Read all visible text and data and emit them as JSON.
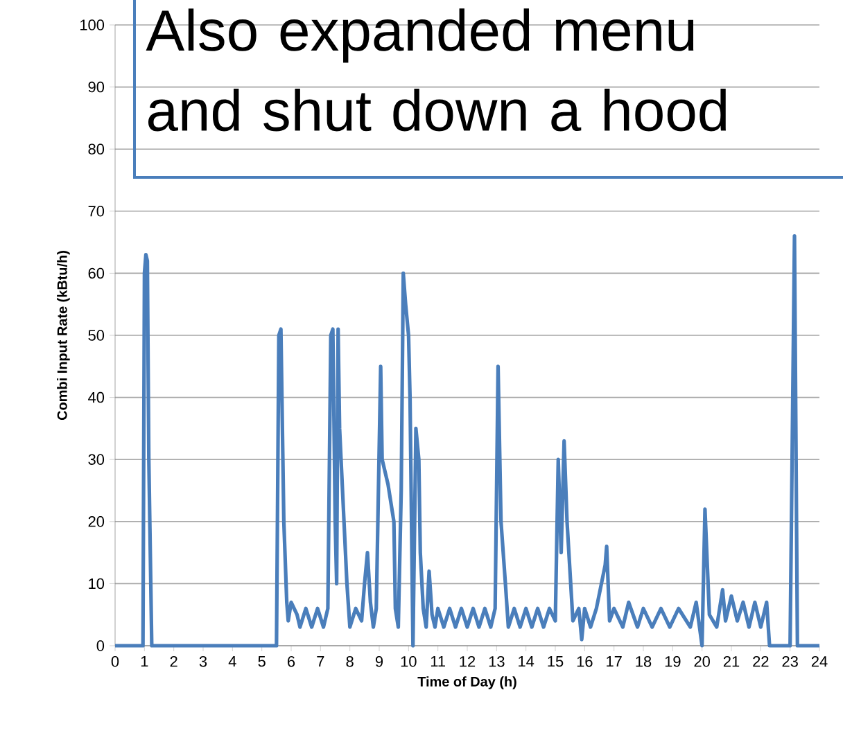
{
  "chart_data": {
    "type": "line",
    "xlabel": "Time of Day (h)",
    "ylabel": "Combi Input Rate (kBtu/h)",
    "annotations": [
      "Also expanded menu and shut down a hood"
    ],
    "xlim": [
      0,
      24
    ],
    "xticks": [
      0,
      1,
      2,
      3,
      4,
      5,
      6,
      7,
      8,
      9,
      10,
      11,
      12,
      13,
      14,
      15,
      16,
      17,
      18,
      19,
      20,
      21,
      22,
      23,
      24
    ],
    "ylim": [
      0,
      100
    ],
    "yticks": [
      0,
      10,
      20,
      30,
      40,
      50,
      60,
      70,
      80,
      90,
      100
    ],
    "grid": "y",
    "marker": "none",
    "line_style": "solid",
    "series": [
      {
        "color": "#4a7ebb",
        "x": [
          0,
          0.95,
          1.0,
          1.05,
          1.1,
          1.15,
          1.25,
          5.5,
          5.58,
          5.65,
          5.75,
          5.85,
          5.9,
          6.0,
          6.2,
          6.3,
          6.5,
          6.7,
          6.9,
          7.1,
          7.25,
          7.35,
          7.42,
          7.5,
          7.55,
          7.6,
          7.65,
          7.75,
          7.9,
          8.0,
          8.2,
          8.4,
          8.5,
          8.6,
          8.7,
          8.8,
          8.9,
          9.05,
          9.1,
          9.3,
          9.5,
          9.55,
          9.65,
          9.75,
          9.82,
          9.9,
          10.0,
          10.05,
          10.15,
          10.25,
          10.35,
          10.4,
          10.5,
          10.6,
          10.7,
          10.8,
          10.9,
          11.0,
          11.2,
          11.4,
          11.6,
          11.8,
          12.0,
          12.2,
          12.4,
          12.6,
          12.8,
          12.95,
          13.05,
          13.15,
          13.3,
          13.4,
          13.6,
          13.8,
          14.0,
          14.2,
          14.4,
          14.6,
          14.8,
          15.0,
          15.1,
          15.2,
          15.3,
          15.4,
          15.6,
          15.8,
          15.9,
          16.0,
          16.2,
          16.4,
          16.7,
          16.75,
          16.85,
          17.0,
          17.3,
          17.5,
          17.8,
          18.0,
          18.3,
          18.6,
          18.9,
          19.2,
          19.6,
          19.8,
          20.0,
          20.1,
          20.25,
          20.5,
          20.7,
          20.8,
          21.0,
          21.2,
          21.4,
          21.6,
          21.8,
          22.0,
          22.2,
          22.3,
          23.0,
          23.15,
          23.25,
          24
        ],
        "values": [
          0,
          0,
          60,
          63,
          62,
          30,
          0,
          0,
          50,
          51,
          20,
          7,
          4,
          7,
          5,
          3,
          6,
          3,
          6,
          3,
          6,
          50,
          51,
          20,
          10,
          51,
          35,
          25,
          10,
          3,
          6,
          4,
          10,
          15,
          7,
          3,
          6,
          45,
          30,
          26,
          20,
          6,
          3,
          25,
          60,
          55,
          50,
          40,
          0,
          35,
          30,
          15,
          6,
          3,
          12,
          5,
          3,
          6,
          3,
          6,
          3,
          6,
          3,
          6,
          3,
          6,
          3,
          6,
          45,
          20,
          10,
          3,
          6,
          3,
          6,
          3,
          6,
          3,
          6,
          4,
          30,
          15,
          33,
          20,
          4,
          6,
          1,
          6,
          3,
          6,
          13,
          16,
          4,
          6,
          3,
          7,
          3,
          6,
          3,
          6,
          3,
          6,
          3,
          7,
          0,
          22,
          5,
          3,
          9,
          4,
          8,
          4,
          7,
          3,
          7,
          3,
          7,
          0,
          0,
          66,
          0,
          0
        ]
      }
    ]
  }
}
